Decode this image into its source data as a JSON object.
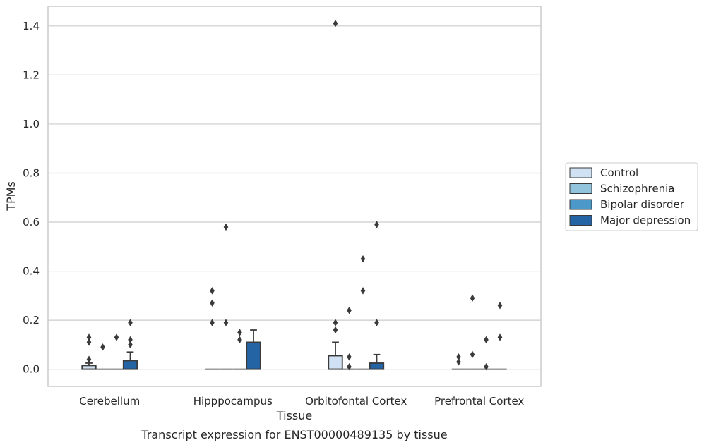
{
  "chart_data": {
    "type": "box",
    "title": "",
    "caption": "Transcript expression for ENST00000489135 by tissue",
    "xlabel": "Tissue",
    "ylabel": "TPMs",
    "ylim": [
      -0.07,
      1.48
    ],
    "yticks": [
      0.0,
      0.2,
      0.4,
      0.6,
      0.8,
      1.0,
      1.2,
      1.4
    ],
    "ytick_labels": [
      "0.0",
      "0.2",
      "0.4",
      "0.6",
      "0.8",
      "1.0",
      "1.2",
      "1.4"
    ],
    "grid": true,
    "legend_position": "right",
    "categories": [
      "Cerebellum",
      "Hipppocampus",
      "Orbitofontal Cortex",
      "Prefrontal Cortex"
    ],
    "series": [
      {
        "name": "Control",
        "color": "#cfe1f2",
        "boxes": [
          {
            "q1": 0.0,
            "median": 0.0,
            "q3": 0.015,
            "whisker_low": 0.0,
            "whisker_high": 0.025,
            "outliers": [
              0.04,
              0.11,
              0.13
            ]
          },
          {
            "q1": 0.0,
            "median": 0.0,
            "q3": 0.0,
            "whisker_low": 0.0,
            "whisker_high": 0.0,
            "outliers": [
              0.19,
              0.27,
              0.32
            ]
          },
          {
            "q1": 0.0,
            "median": 0.0,
            "q3": 0.055,
            "whisker_low": 0.0,
            "whisker_high": 0.11,
            "outliers": [
              0.16,
              0.19,
              1.41
            ]
          },
          {
            "q1": 0.0,
            "median": 0.0,
            "q3": 0.0,
            "whisker_low": 0.0,
            "whisker_high": 0.0,
            "outliers": [
              0.03,
              0.05
            ]
          }
        ]
      },
      {
        "name": "Schizophrenia",
        "color": "#93c4de",
        "boxes": [
          {
            "q1": 0.0,
            "median": 0.0,
            "q3": 0.0,
            "whisker_low": 0.0,
            "whisker_high": 0.0,
            "outliers": [
              0.09
            ]
          },
          {
            "q1": 0.0,
            "median": 0.0,
            "q3": 0.0,
            "whisker_low": 0.0,
            "whisker_high": 0.0,
            "outliers": [
              0.19,
              0.58
            ]
          },
          {
            "q1": 0.0,
            "median": 0.0,
            "q3": 0.0,
            "whisker_low": 0.0,
            "whisker_high": 0.0,
            "outliers": [
              0.01,
              0.05,
              0.24
            ]
          },
          {
            "q1": 0.0,
            "median": 0.0,
            "q3": 0.0,
            "whisker_low": 0.0,
            "whisker_high": 0.0,
            "outliers": [
              0.06,
              0.29
            ]
          }
        ]
      },
      {
        "name": "Bipolar disorder",
        "color": "#4b98c9",
        "boxes": [
          {
            "q1": 0.0,
            "median": 0.0,
            "q3": 0.0,
            "whisker_low": 0.0,
            "whisker_high": 0.0,
            "outliers": [
              0.13
            ]
          },
          {
            "q1": 0.0,
            "median": 0.0,
            "q3": 0.0,
            "whisker_low": 0.0,
            "whisker_high": 0.0,
            "outliers": [
              0.12,
              0.15
            ]
          },
          {
            "q1": 0.0,
            "median": 0.0,
            "q3": 0.0,
            "whisker_low": 0.0,
            "whisker_high": 0.0,
            "outliers": [
              0.32,
              0.45
            ]
          },
          {
            "q1": 0.0,
            "median": 0.0,
            "q3": 0.0,
            "whisker_low": 0.0,
            "whisker_high": 0.0,
            "outliers": [
              0.01,
              0.12
            ]
          }
        ]
      },
      {
        "name": "Major depression",
        "color": "#2464a4",
        "boxes": [
          {
            "q1": 0.0,
            "median": 0.0,
            "q3": 0.035,
            "whisker_low": 0.0,
            "whisker_high": 0.07,
            "outliers": [
              0.1,
              0.12,
              0.19
            ]
          },
          {
            "q1": 0.0,
            "median": 0.0,
            "q3": 0.11,
            "whisker_low": 0.0,
            "whisker_high": 0.16,
            "outliers": []
          },
          {
            "q1": 0.0,
            "median": 0.0,
            "q3": 0.025,
            "whisker_low": 0.0,
            "whisker_high": 0.06,
            "outliers": [
              0.19,
              0.59
            ]
          },
          {
            "q1": 0.0,
            "median": 0.0,
            "q3": 0.0,
            "whisker_low": 0.0,
            "whisker_high": 0.0,
            "outliers": [
              0.13,
              0.26
            ]
          }
        ]
      }
    ]
  }
}
